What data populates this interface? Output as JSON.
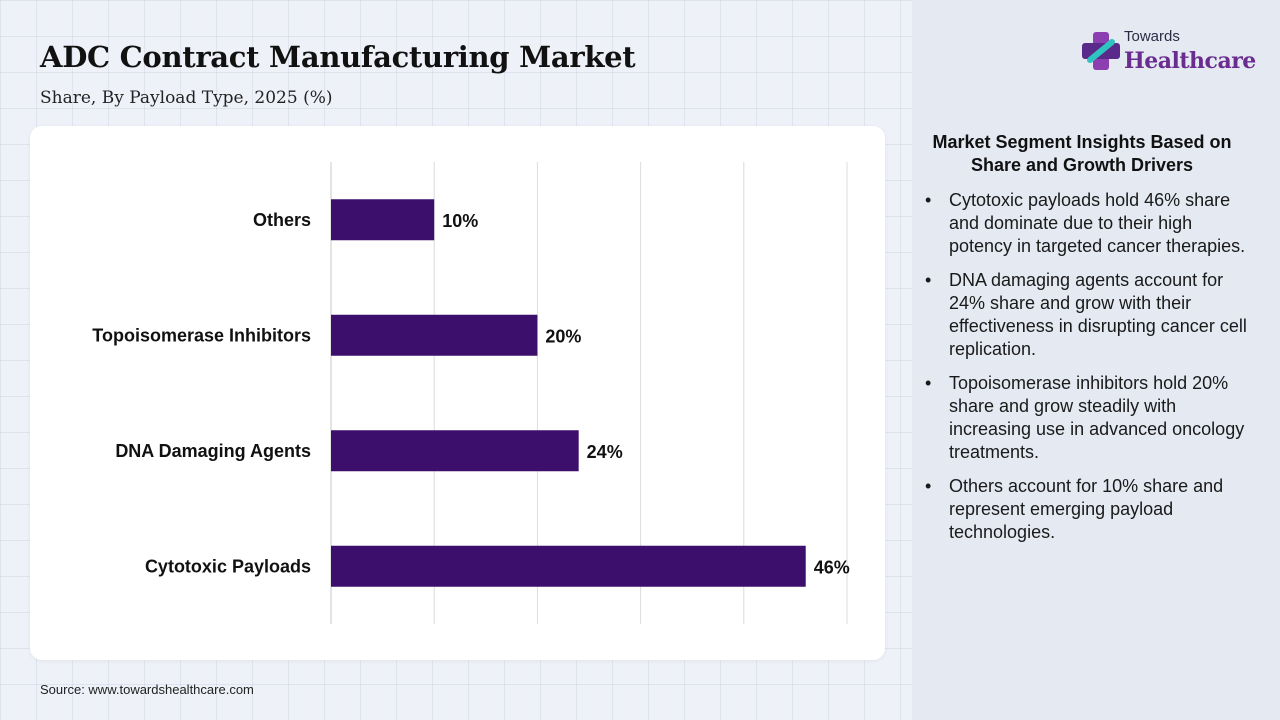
{
  "header": {
    "title": "ADC Contract Manufacturing Market",
    "subtitle": "Share, By Payload Type, 2025 (%)"
  },
  "logo": {
    "top_text": "Towards",
    "bottom_text": "Healthcare",
    "icon": "plus-cross-logo-icon"
  },
  "colors": {
    "bar": "#3b0f6b",
    "brand": "#6a2d8f",
    "panel": "#e4e9f2"
  },
  "chart_data": {
    "type": "bar",
    "orientation": "horizontal",
    "categories": [
      "Others",
      "Topoisomerase Inhibitors",
      "DNA Damaging Agents",
      "Cytotoxic Payloads"
    ],
    "values": [
      10,
      20,
      24,
      46
    ],
    "data_labels": [
      "10%",
      "20%",
      "24%",
      "46%"
    ],
    "xlim": [
      0,
      50
    ],
    "grid": true,
    "legend": "none"
  },
  "insights": {
    "title": "Market Segment Insights Based on Share and Growth Drivers",
    "bullet": "•",
    "items": [
      "Cytotoxic payloads hold 46% share and dominate due to their high potency in targeted cancer therapies.",
      "DNA damaging agents account for 24% share and grow with their effectiveness in disrupting cancer cell replication.",
      "Topoisomerase inhibitors hold 20% share and grow steadily with increasing use in advanced oncology treatments.",
      "Others account for 10% share and represent emerging payload technologies."
    ]
  },
  "footer": {
    "source": "Source: www.towardshealthcare.com"
  }
}
